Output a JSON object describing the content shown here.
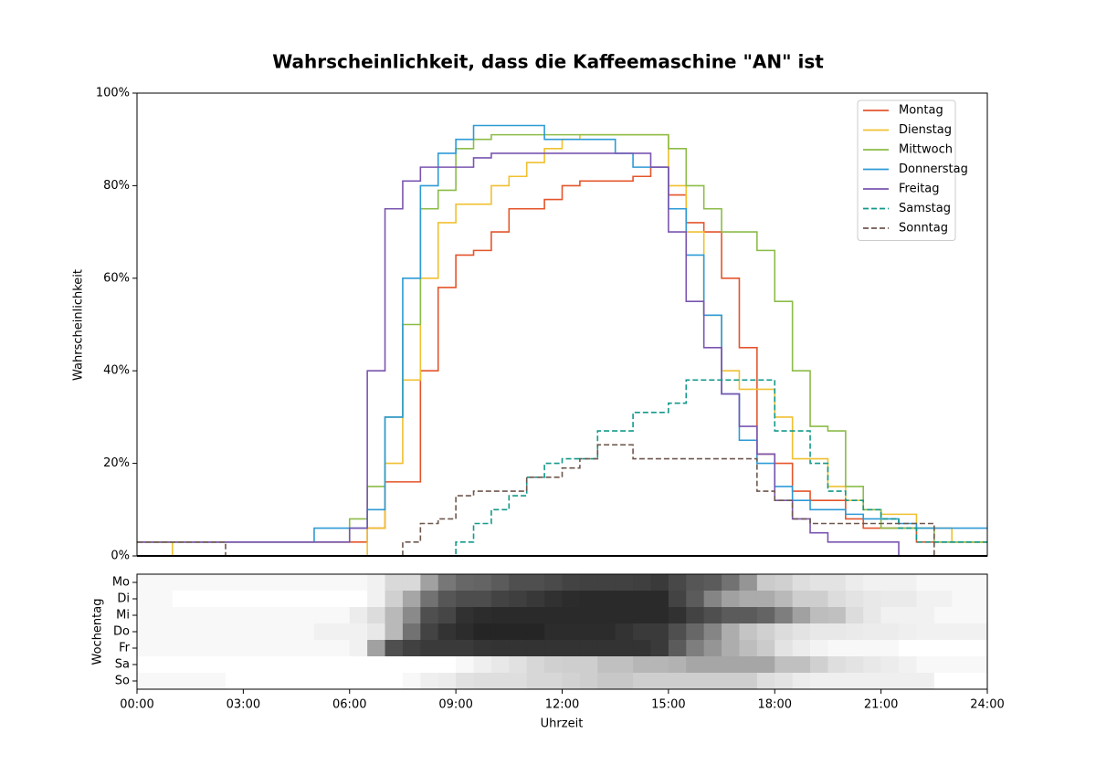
{
  "chart_data": [
    {
      "type": "line",
      "title": "Wahrscheinlichkeit, dass die Kaffeemaschine \"AN\" ist",
      "ylabel": "Wahrscheinlichkeit",
      "x": [
        0,
        0.5,
        1,
        1.5,
        2,
        2.5,
        3,
        3.5,
        4,
        4.5,
        5,
        5.5,
        6,
        6.5,
        7,
        7.5,
        8,
        8.5,
        9,
        9.5,
        10,
        10.5,
        11,
        11.5,
        12,
        12.5,
        13,
        13.5,
        14,
        14.5,
        15,
        15.5,
        16,
        16.5,
        17,
        17.5,
        18,
        18.5,
        19,
        19.5,
        20,
        20.5,
        21,
        21.5,
        22,
        22.5,
        23,
        23.5,
        24
      ],
      "xlim": [
        0,
        24
      ],
      "ylim": [
        0,
        100
      ],
      "yticks": [
        {
          "value": 0,
          "label": "0%"
        },
        {
          "value": 20,
          "label": "20%"
        },
        {
          "value": 40,
          "label": "40%"
        },
        {
          "value": 60,
          "label": "60%"
        },
        {
          "value": 80,
          "label": "80%"
        },
        {
          "value": 100,
          "label": "100%"
        }
      ],
      "legend": "upper right",
      "series": [
        {
          "name": "Montag",
          "color": "#e4552b",
          "dashed": false,
          "values": [
            3,
            3,
            3,
            3,
            3,
            3,
            3,
            3,
            3,
            3,
            3,
            3,
            3,
            6,
            16,
            16,
            40,
            58,
            65,
            66,
            70,
            75,
            75,
            77,
            80,
            81,
            81,
            81,
            82,
            84,
            78,
            72,
            70,
            60,
            45,
            22,
            20,
            14,
            12,
            12,
            8,
            6,
            6,
            6,
            3,
            3,
            3,
            3,
            3
          ]
        },
        {
          "name": "Dienstag",
          "color": "#f0c030",
          "dashed": false,
          "values": [
            3,
            3,
            0,
            0,
            0,
            0,
            0,
            0,
            0,
            0,
            0,
            0,
            0,
            6,
            20,
            38,
            60,
            72,
            76,
            76,
            80,
            82,
            85,
            88,
            90,
            91,
            91,
            91,
            91,
            91,
            80,
            70,
            52,
            40,
            36,
            36,
            30,
            21,
            21,
            15,
            12,
            10,
            9,
            9,
            6,
            6,
            3,
            3,
            3
          ]
        },
        {
          "name": "Mittwoch",
          "color": "#8cbc48",
          "dashed": false,
          "values": [
            3,
            3,
            3,
            3,
            3,
            3,
            3,
            3,
            3,
            3,
            3,
            3,
            8,
            15,
            30,
            50,
            75,
            79,
            88,
            90,
            91,
            91,
            91,
            91,
            91,
            91,
            91,
            91,
            91,
            91,
            88,
            80,
            75,
            70,
            70,
            66,
            55,
            40,
            28,
            27,
            15,
            10,
            6,
            6,
            6,
            3,
            3,
            3,
            3
          ]
        },
        {
          "name": "Donnerstag",
          "color": "#2e9ad6",
          "dashed": false,
          "values": [
            3,
            3,
            3,
            3,
            3,
            3,
            3,
            3,
            3,
            3,
            6,
            6,
            6,
            10,
            30,
            60,
            80,
            87,
            90,
            93,
            93,
            93,
            93,
            90,
            90,
            90,
            90,
            87,
            84,
            84,
            75,
            65,
            52,
            35,
            25,
            20,
            15,
            12,
            10,
            10,
            9,
            8,
            8,
            7,
            6,
            6,
            6,
            6,
            6
          ]
        },
        {
          "name": "Freitag",
          "color": "#7a55b0",
          "dashed": false,
          "values": [
            3,
            3,
            3,
            3,
            3,
            3,
            3,
            3,
            3,
            3,
            3,
            3,
            6,
            40,
            75,
            81,
            84,
            84,
            84,
            86,
            87,
            87,
            87,
            87,
            87,
            87,
            87,
            87,
            87,
            84,
            70,
            55,
            45,
            35,
            28,
            22,
            12,
            8,
            5,
            3,
            3,
            3,
            3,
            0,
            0,
            0,
            0,
            0,
            0
          ]
        },
        {
          "name": "Samstag",
          "color": "#12998a",
          "dashed": true,
          "values": [
            0,
            0,
            0,
            0,
            0,
            0,
            0,
            0,
            0,
            0,
            0,
            0,
            0,
            0,
            0,
            0,
            0,
            0,
            3,
            7,
            10,
            13,
            17,
            20,
            21,
            21,
            27,
            27,
            31,
            31,
            33,
            38,
            38,
            38,
            38,
            38,
            27,
            27,
            20,
            14,
            12,
            10,
            8,
            6,
            3,
            3,
            3,
            3,
            3
          ]
        },
        {
          "name": "Sonntag",
          "color": "#6e574e",
          "dashed": true,
          "values": [
            3,
            3,
            3,
            3,
            3,
            0,
            0,
            0,
            0,
            0,
            0,
            0,
            0,
            0,
            0,
            3,
            7,
            8,
            13,
            14,
            14,
            14,
            17,
            17,
            19,
            21,
            24,
            24,
            21,
            21,
            21,
            21,
            21,
            21,
            21,
            14,
            12,
            8,
            7,
            7,
            7,
            7,
            7,
            7,
            7,
            0,
            0,
            0,
            0
          ]
        }
      ]
    },
    {
      "type": "heatmap",
      "ylabel": "Wochentag",
      "xlabel": "Uhrzeit",
      "categories": [
        "Mo",
        "Di",
        "Mi",
        "Do",
        "Fr",
        "Sa",
        "So"
      ],
      "xlim": [
        0,
        24
      ],
      "xticks": [
        {
          "value": 0,
          "label": "00:00"
        },
        {
          "value": 3,
          "label": "03:00"
        },
        {
          "value": 6,
          "label": "06:00"
        },
        {
          "value": 9,
          "label": "09:00"
        },
        {
          "value": 12,
          "label": "12:00"
        },
        {
          "value": 15,
          "label": "15:00"
        },
        {
          "value": 18,
          "label": "18:00"
        },
        {
          "value": 21,
          "label": "21:00"
        },
        {
          "value": 24,
          "label": "24:00"
        }
      ]
    }
  ]
}
